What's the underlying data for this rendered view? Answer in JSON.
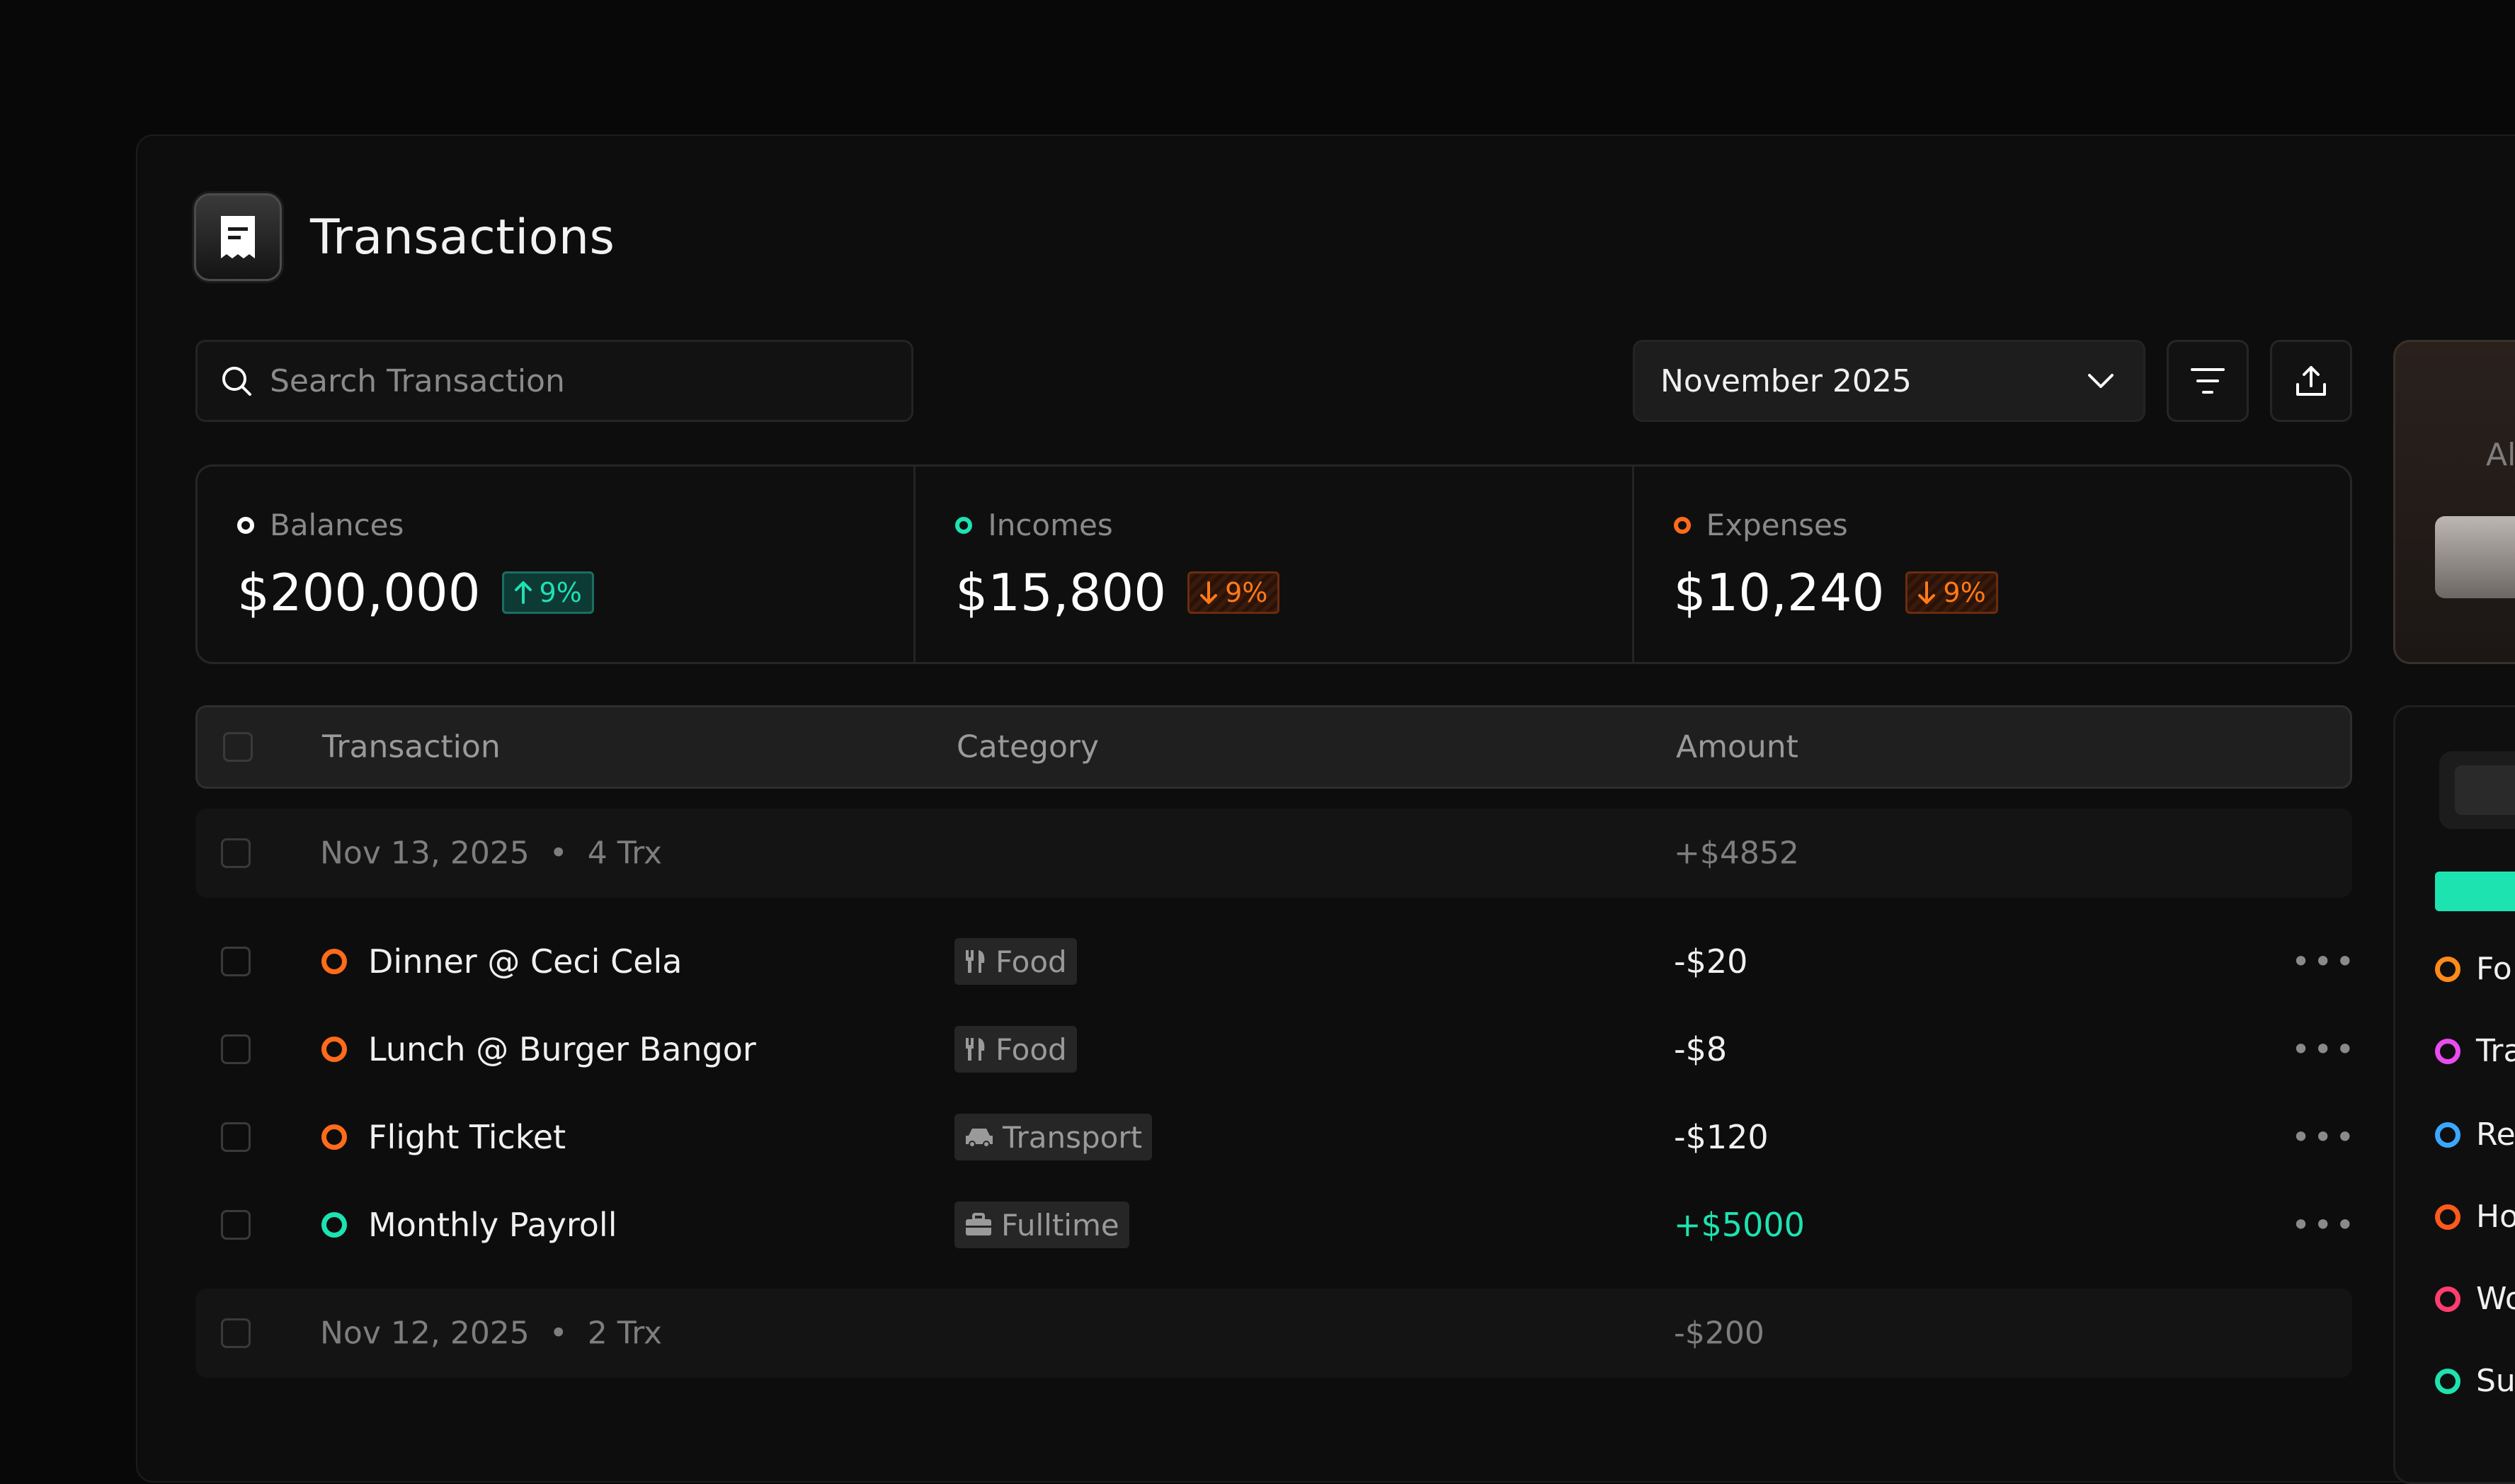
{
  "header": {
    "title": "Transactions",
    "logo_icon": "receipt-icon"
  },
  "search": {
    "placeholder": "Search Transaction"
  },
  "period": {
    "selected": "November 2025"
  },
  "stats": [
    {
      "label": "Balances",
      "value": "$200,000",
      "change": "9%",
      "direction": "up",
      "color": "#ffffff"
    },
    {
      "label": "Incomes",
      "value": "$15,800",
      "change": "9%",
      "direction": "down",
      "color": "#1de3b0"
    },
    {
      "label": "Expenses",
      "value": "$10,240",
      "change": "9%",
      "direction": "down",
      "color": "#ff6b1a"
    }
  ],
  "table": {
    "headers": {
      "transaction": "Transaction",
      "category": "Category",
      "amount": "Amount"
    },
    "groups": [
      {
        "date": "Nov 13, 2025",
        "count": "4 Trx",
        "total": "+$4852",
        "rows": [
          {
            "name": "Dinner @ Ceci Cela",
            "category": "Food",
            "category_icon": "utensils-icon",
            "amount": "-$20",
            "status_color": "#ff6b1a",
            "amount_color": "#f0f0f0"
          },
          {
            "name": "Lunch @ Burger Bangor",
            "category": "Food",
            "category_icon": "utensils-icon",
            "amount": "-$8",
            "status_color": "#ff6b1a",
            "amount_color": "#f0f0f0"
          },
          {
            "name": "Flight Ticket",
            "category": "Transport",
            "category_icon": "car-icon",
            "amount": "-$120",
            "status_color": "#ff6b1a",
            "amount_color": "#f0f0f0"
          },
          {
            "name": "Monthly Payroll",
            "category": "Fulltime",
            "category_icon": "briefcase-icon",
            "amount": "+$5000",
            "status_color": "#1de3b0",
            "amount_color": "#1de3b0"
          }
        ]
      },
      {
        "date": "Nov 12, 2025",
        "count": "2 Trx",
        "total": "-$200",
        "rows": []
      }
    ]
  },
  "sidebar": {
    "top_text": "Al",
    "legend": [
      {
        "label": "Fo",
        "color": "#ff8a1a"
      },
      {
        "label": "Tra",
        "color": "#e84cf0"
      },
      {
        "label": "Re",
        "color": "#3aa8ff"
      },
      {
        "label": "Ho",
        "color": "#ff5a1a"
      },
      {
        "label": "Wo",
        "color": "#ff3d6e"
      },
      {
        "label": "Su",
        "color": "#1de3b0"
      }
    ]
  }
}
